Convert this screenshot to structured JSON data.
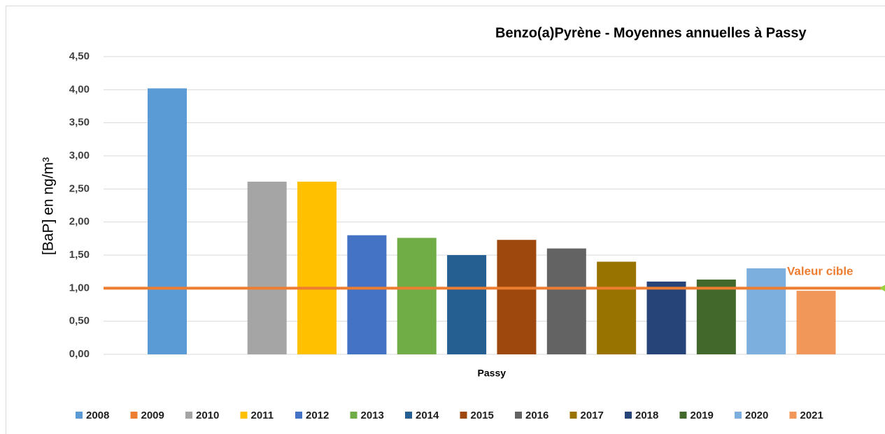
{
  "chart_data": {
    "type": "bar",
    "title": "Benzo(a)Pyrène - Moyennes annuelles à Passy",
    "y_label": "[BaP] en ng/m³",
    "categories": [
      "Passy"
    ],
    "series": [
      {
        "name": "2008",
        "color": "#5b9bd5",
        "values": [
          4.02
        ]
      },
      {
        "name": "2009",
        "color": "#ed7d31",
        "values": [
          null
        ]
      },
      {
        "name": "2010",
        "color": "#a5a5a5",
        "values": [
          2.61
        ]
      },
      {
        "name": "2011",
        "color": "#ffc000",
        "values": [
          2.61
        ]
      },
      {
        "name": "2012",
        "color": "#4472c4",
        "values": [
          1.8
        ]
      },
      {
        "name": "2013",
        "color": "#70ad47",
        "values": [
          1.76
        ]
      },
      {
        "name": "2014",
        "color": "#255e91",
        "values": [
          1.5
        ]
      },
      {
        "name": "2015",
        "color": "#9e480e",
        "values": [
          1.73
        ]
      },
      {
        "name": "2016",
        "color": "#636363",
        "values": [
          1.6
        ]
      },
      {
        "name": "2017",
        "color": "#997300",
        "values": [
          1.4
        ]
      },
      {
        "name": "2018",
        "color": "#264478",
        "values": [
          1.1
        ]
      },
      {
        "name": "2019",
        "color": "#43682b",
        "values": [
          1.13
        ]
      },
      {
        "name": "2020",
        "color": "#7cafdd",
        "values": [
          1.3
        ]
      },
      {
        "name": "2021",
        "color": "#f1975a",
        "values": [
          0.96
        ]
      }
    ],
    "ylim": [
      0,
      4.5
    ],
    "yticks": [
      {
        "value": 0,
        "label": "0,00"
      },
      {
        "value": 0.5,
        "label": "0,50"
      },
      {
        "value": 1,
        "label": "1,00"
      },
      {
        "value": 1.5,
        "label": "1,50"
      },
      {
        "value": 2,
        "label": "2,00"
      },
      {
        "value": 2.5,
        "label": "2,50"
      },
      {
        "value": 3,
        "label": "3,00"
      },
      {
        "value": 3.5,
        "label": "3,50"
      },
      {
        "value": 4,
        "label": "4,00"
      },
      {
        "value": 4.5,
        "label": "4,50"
      }
    ],
    "grid": true,
    "legend": "bottom",
    "reference_line": {
      "value": 1,
      "label": "Valeur cible",
      "color": "#ed7d31"
    }
  }
}
